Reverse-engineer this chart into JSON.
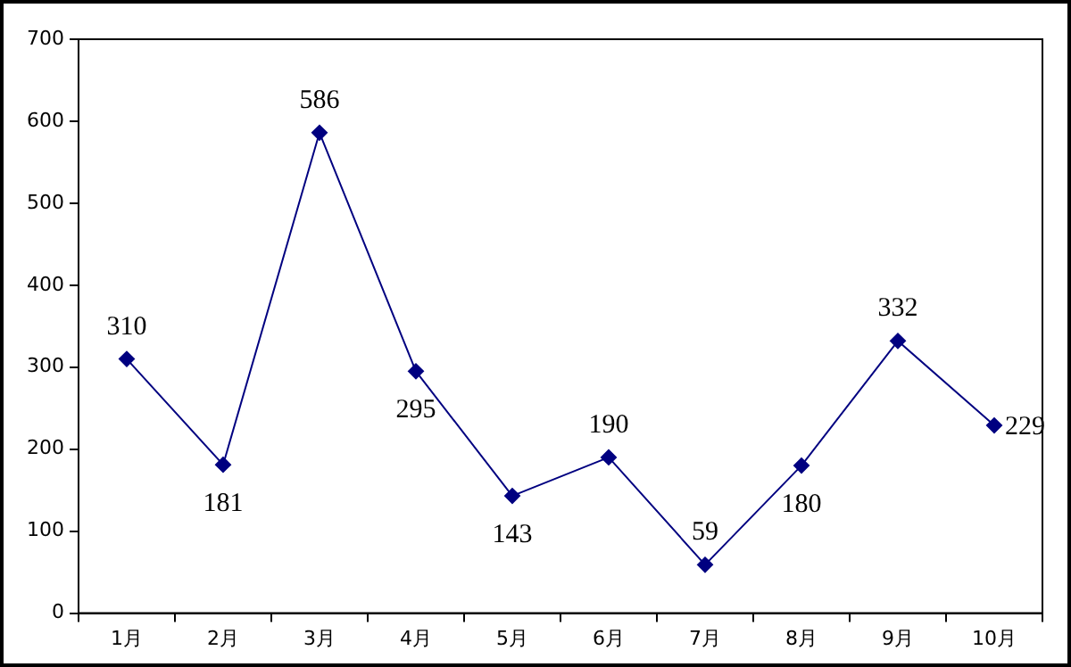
{
  "chart_data": {
    "type": "line",
    "categories": [
      "1月",
      "2月",
      "3月",
      "4月",
      "5月",
      "6月",
      "7月",
      "8月",
      "9月",
      "10月"
    ],
    "series": [
      {
        "color": "#000080",
        "values": [
          310,
          181,
          586,
          295,
          143,
          190,
          59,
          180,
          332,
          229
        ]
      }
    ],
    "ylim": [
      0,
      700
    ],
    "yticks": [
      0,
      100,
      200,
      300,
      400,
      500,
      600,
      700
    ],
    "grid": false,
    "legend": false,
    "marker": "diamond",
    "line_style": "solid",
    "data_labels": true
  }
}
